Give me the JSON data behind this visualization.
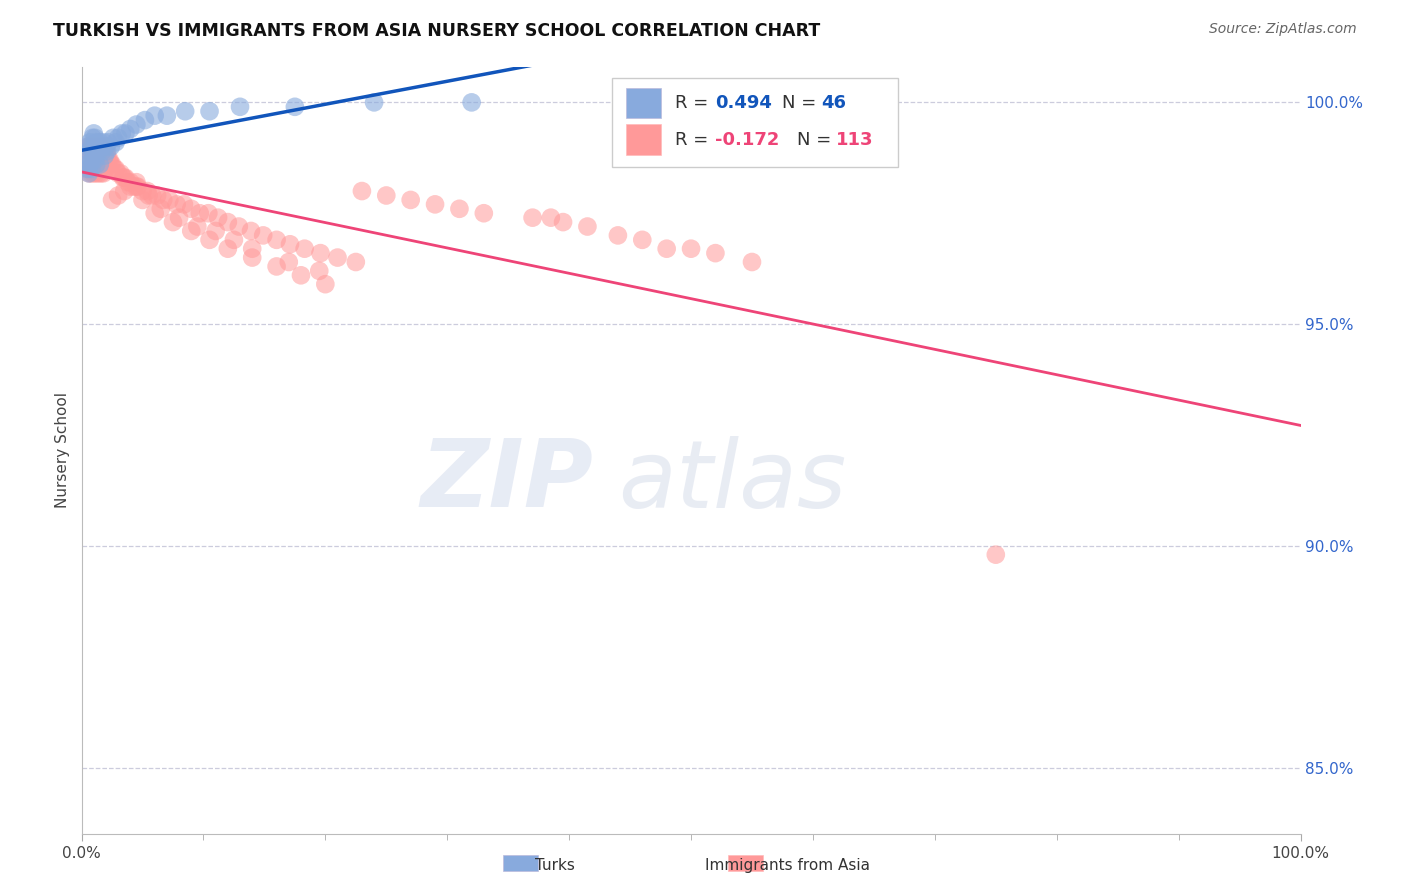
{
  "title": "TURKISH VS IMMIGRANTS FROM ASIA NURSERY SCHOOL CORRELATION CHART",
  "source": "Source: ZipAtlas.com",
  "ylabel": "Nursery School",
  "xmin": 0.0,
  "xmax": 1.0,
  "ymin": 0.835,
  "ymax": 1.008,
  "right_yticks": [
    1.0,
    0.95,
    0.9,
    0.85
  ],
  "right_ytick_labels": [
    "100.0%",
    "95.0%",
    "90.0%",
    "85.0%"
  ],
  "color_blue": "#88AADD",
  "color_pink": "#FF9999",
  "color_blue_line": "#1155BB",
  "color_pink_line": "#EE4477",
  "color_grid": "#CCCCDD",
  "color_title": "#111111",
  "color_right_label": "#3366CC",
  "watermark_zip": "ZIP",
  "watermark_atlas": "atlas",
  "turks_x": [
    0.003,
    0.004,
    0.005,
    0.005,
    0.006,
    0.006,
    0.007,
    0.007,
    0.008,
    0.008,
    0.009,
    0.009,
    0.01,
    0.01,
    0.011,
    0.011,
    0.012,
    0.012,
    0.013,
    0.014,
    0.015,
    0.015,
    0.016,
    0.017,
    0.018,
    0.019,
    0.02,
    0.021,
    0.022,
    0.024,
    0.026,
    0.028,
    0.03,
    0.033,
    0.036,
    0.04,
    0.045,
    0.052,
    0.06,
    0.07,
    0.085,
    0.105,
    0.13,
    0.175,
    0.24,
    0.32
  ],
  "turks_y": [
    0.988,
    0.986,
    0.99,
    0.985,
    0.989,
    0.984,
    0.991,
    0.986,
    0.99,
    0.985,
    0.992,
    0.987,
    0.993,
    0.988,
    0.992,
    0.987,
    0.991,
    0.986,
    0.99,
    0.989,
    0.991,
    0.986,
    0.99,
    0.989,
    0.991,
    0.988,
    0.99,
    0.989,
    0.991,
    0.99,
    0.992,
    0.991,
    0.992,
    0.993,
    0.993,
    0.994,
    0.995,
    0.996,
    0.997,
    0.997,
    0.998,
    0.998,
    0.999,
    0.999,
    1.0,
    1.0
  ],
  "asia_x": [
    0.003,
    0.004,
    0.005,
    0.005,
    0.006,
    0.006,
    0.007,
    0.007,
    0.008,
    0.008,
    0.009,
    0.009,
    0.01,
    0.01,
    0.011,
    0.011,
    0.012,
    0.012,
    0.013,
    0.013,
    0.014,
    0.014,
    0.015,
    0.015,
    0.016,
    0.016,
    0.017,
    0.017,
    0.018,
    0.018,
    0.019,
    0.019,
    0.02,
    0.021,
    0.022,
    0.023,
    0.024,
    0.025,
    0.027,
    0.028,
    0.03,
    0.032,
    0.034,
    0.036,
    0.038,
    0.04,
    0.043,
    0.046,
    0.05,
    0.054,
    0.058,
    0.062,
    0.067,
    0.072,
    0.078,
    0.084,
    0.09,
    0.097,
    0.104,
    0.112,
    0.12,
    0.129,
    0.139,
    0.149,
    0.16,
    0.171,
    0.183,
    0.196,
    0.21,
    0.225,
    0.05,
    0.065,
    0.08,
    0.095,
    0.11,
    0.125,
    0.14,
    0.06,
    0.075,
    0.09,
    0.105,
    0.12,
    0.14,
    0.16,
    0.18,
    0.2,
    0.035,
    0.045,
    0.055,
    0.045,
    0.04,
    0.035,
    0.03,
    0.025,
    0.385,
    0.415,
    0.5,
    0.52,
    0.46,
    0.55,
    0.33,
    0.29,
    0.25,
    0.37,
    0.44,
    0.31,
    0.27,
    0.48,
    0.23,
    0.395,
    0.75,
    0.17,
    0.195
  ],
  "asia_y": [
    0.989,
    0.988,
    0.99,
    0.985,
    0.989,
    0.984,
    0.99,
    0.985,
    0.989,
    0.984,
    0.99,
    0.985,
    0.989,
    0.984,
    0.99,
    0.985,
    0.989,
    0.984,
    0.99,
    0.985,
    0.989,
    0.984,
    0.99,
    0.985,
    0.989,
    0.984,
    0.99,
    0.985,
    0.989,
    0.984,
    0.99,
    0.985,
    0.989,
    0.988,
    0.987,
    0.987,
    0.986,
    0.986,
    0.985,
    0.985,
    0.984,
    0.984,
    0.983,
    0.983,
    0.982,
    0.982,
    0.981,
    0.981,
    0.98,
    0.98,
    0.979,
    0.979,
    0.978,
    0.978,
    0.977,
    0.977,
    0.976,
    0.975,
    0.975,
    0.974,
    0.973,
    0.972,
    0.971,
    0.97,
    0.969,
    0.968,
    0.967,
    0.966,
    0.965,
    0.964,
    0.978,
    0.976,
    0.974,
    0.972,
    0.971,
    0.969,
    0.967,
    0.975,
    0.973,
    0.971,
    0.969,
    0.967,
    0.965,
    0.963,
    0.961,
    0.959,
    0.983,
    0.981,
    0.979,
    0.982,
    0.981,
    0.98,
    0.979,
    0.978,
    0.974,
    0.972,
    0.967,
    0.966,
    0.969,
    0.964,
    0.975,
    0.977,
    0.979,
    0.974,
    0.97,
    0.976,
    0.978,
    0.967,
    0.98,
    0.973,
    0.898,
    0.964,
    0.962
  ]
}
